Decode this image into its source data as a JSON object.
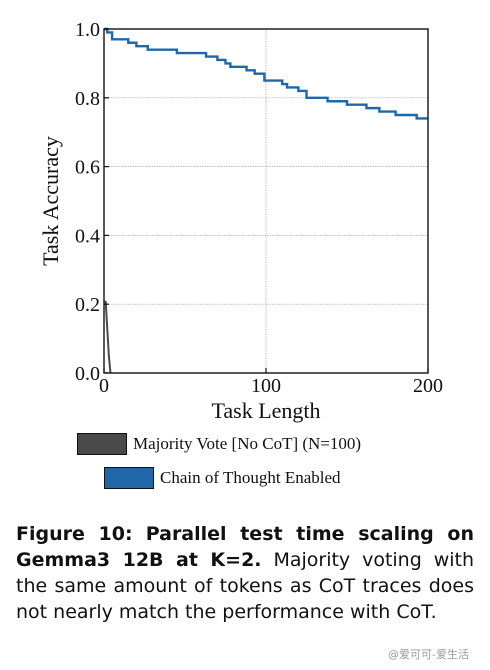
{
  "chart_data": {
    "type": "line",
    "xlabel": "Task Length",
    "ylabel": "Task Accuracy",
    "xlim": [
      0,
      200
    ],
    "ylim": [
      0.0,
      1.0
    ],
    "x_ticks": [
      "0",
      "100",
      "200"
    ],
    "y_ticks": [
      "0.0",
      "0.2",
      "0.4",
      "0.6",
      "0.8",
      "1.0"
    ],
    "grid": true,
    "series": [
      {
        "name": "Majority Vote [No CoT] (N=100)",
        "color": "#4a4a4a",
        "x": [
          1,
          2,
          3,
          4
        ],
        "y": [
          0.21,
          0.13,
          0.05,
          0.0
        ]
      },
      {
        "name": "Chain of Thought Enabled",
        "color": "#1f67a8",
        "x": [
          0,
          2,
          5,
          15,
          20,
          27,
          45,
          63,
          70,
          75,
          78,
          88,
          93,
          99,
          110,
          113,
          120,
          125,
          138,
          150,
          162,
          170,
          180,
          185,
          193,
          200
        ],
        "y": [
          1.0,
          0.99,
          0.97,
          0.96,
          0.95,
          0.94,
          0.93,
          0.92,
          0.91,
          0.9,
          0.89,
          0.88,
          0.87,
          0.85,
          0.84,
          0.83,
          0.82,
          0.8,
          0.79,
          0.78,
          0.77,
          0.76,
          0.75,
          0.75,
          0.74,
          0.74
        ]
      }
    ]
  },
  "caption": {
    "label": "Figure 10:",
    "bold_text": "Parallel test time scaling on Gemma3 12B at K=2.",
    "text": "Majority voting with the same amount of tokens as CoT traces does not nearly match the performance with CoT."
  },
  "watermark": "@爱可可-爱生活"
}
